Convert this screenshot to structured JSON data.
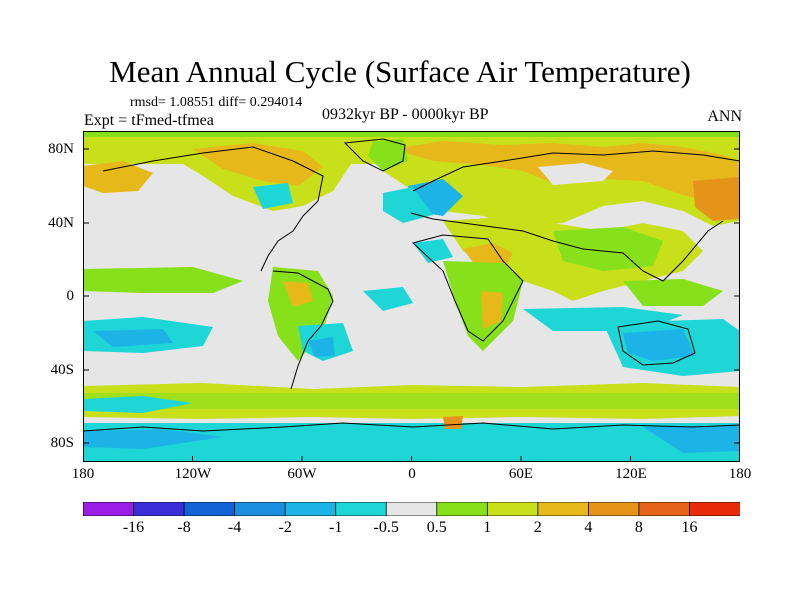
{
  "title": "Mean Annual Cycle (Surface Air Temperature)",
  "stats": "rmsd= 1.08551 diff= 0.294014",
  "experiment": "Expt = tFmed-tfmea",
  "period": "0932kyr BP - 0000kyr BP",
  "season": "ANN",
  "map": {
    "projection": "cylindrical equidistant",
    "lon_range": [
      -180,
      180
    ],
    "lat_range": [
      -90,
      90
    ],
    "y_ticks": [
      "80N",
      "40N",
      "0",
      "40S",
      "80S"
    ],
    "x_ticks": [
      "180",
      "120W",
      "60W",
      "0",
      "60E",
      "120E",
      "180"
    ],
    "background_color": "#e6e6e6"
  },
  "colorbar": {
    "labels": [
      "-16",
      "-8",
      "-4",
      "-2",
      "-1",
      "-0.5",
      "0.5",
      "1",
      "2",
      "4",
      "8",
      "16"
    ],
    "colors": [
      "#9a1ee6",
      "#3a2fd6",
      "#1363d6",
      "#1a8fe0",
      "#1cb4e6",
      "#1ed6d6",
      "#e6e6e6",
      "#86e01a",
      "#c8e01a",
      "#e6b81a",
      "#e6931a",
      "#e6641a",
      "#e62a0a"
    ]
  }
}
